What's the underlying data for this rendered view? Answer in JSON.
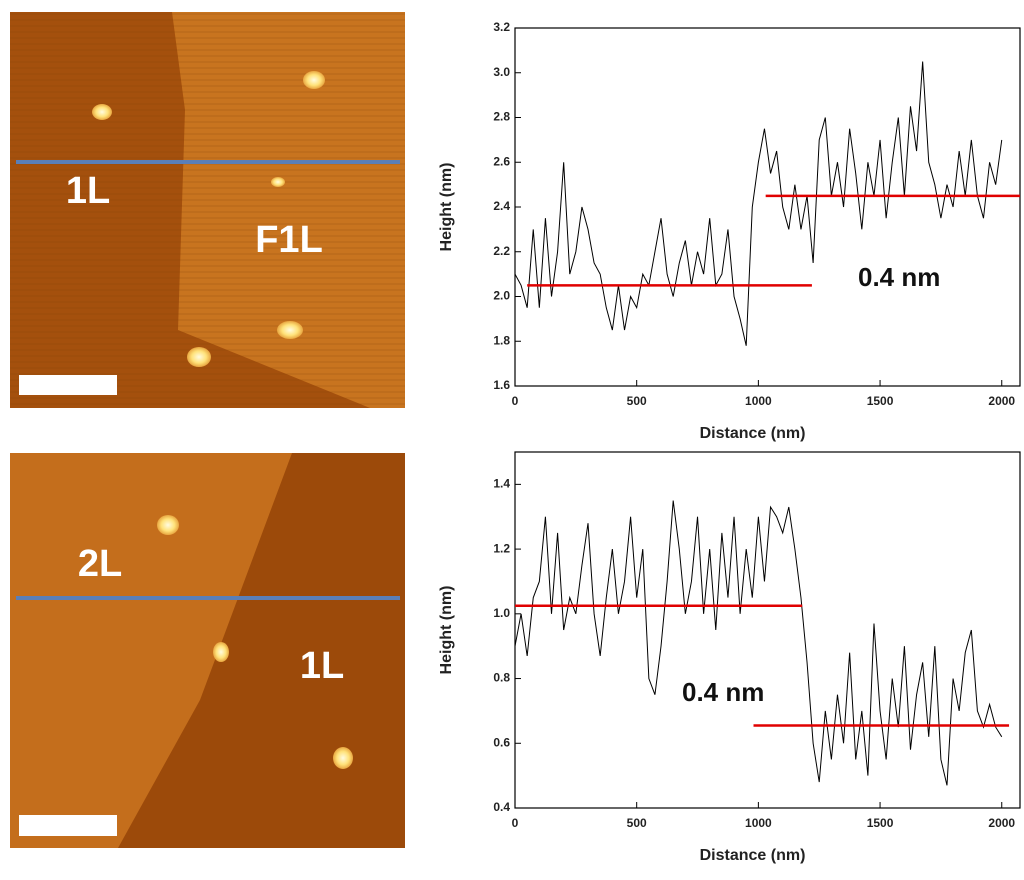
{
  "images": [
    {
      "labels": [
        "1L",
        "F1L"
      ]
    },
    {
      "labels": [
        "2L",
        "1L"
      ]
    }
  ],
  "chart_data": [
    {
      "type": "line",
      "xlabel": "Distance (nm)",
      "ylabel": "Height (nm)",
      "annotation": "0.4 nm",
      "xlim": [
        0,
        2075
      ],
      "ylim": [
        1.6,
        3.2
      ],
      "xticks": [
        0,
        500,
        1000,
        1500,
        2000
      ],
      "yticks": [
        1.6,
        1.8,
        {
          "value": 2,
          "label": "2.0"
        },
        2.2,
        2.4,
        2.6,
        2.8,
        {
          "value": 3,
          "label": "3.0"
        },
        3.2
      ],
      "x": [
        0,
        25,
        50,
        75,
        100,
        125,
        150,
        175,
        200,
        225,
        250,
        275,
        300,
        325,
        350,
        375,
        400,
        425,
        450,
        475,
        500,
        525,
        550,
        575,
        600,
        625,
        650,
        675,
        700,
        725,
        750,
        775,
        800,
        825,
        850,
        875,
        900,
        925,
        950,
        975,
        1000,
        1025,
        1050,
        1075,
        1100,
        1125,
        1150,
        1175,
        1200,
        1225,
        1250,
        1275,
        1300,
        1325,
        1350,
        1375,
        1400,
        1425,
        1450,
        1475,
        1500,
        1525,
        1550,
        1575,
        1600,
        1625,
        1650,
        1675,
        1700,
        1725,
        1750,
        1775,
        1800,
        1825,
        1850,
        1875,
        1900,
        1925,
        1950,
        1975,
        2000
      ],
      "series": [
        {
          "color": "#000000",
          "values": [
            2.1,
            2.05,
            1.95,
            2.3,
            1.95,
            2.35,
            2.0,
            2.2,
            2.6,
            2.1,
            2.2,
            2.4,
            2.3,
            2.15,
            2.1,
            1.95,
            1.85,
            2.05,
            1.85,
            2.0,
            1.95,
            2.1,
            2.05,
            2.2,
            2.35,
            2.1,
            2.0,
            2.15,
            2.25,
            2.05,
            2.2,
            2.1,
            2.35,
            2.05,
            2.1,
            2.3,
            2.0,
            1.9,
            1.78,
            2.4,
            2.6,
            2.75,
            2.55,
            2.65,
            2.4,
            2.3,
            2.5,
            2.3,
            2.45,
            2.15,
            2.7,
            2.8,
            2.45,
            2.6,
            2.4,
            2.75,
            2.55,
            2.3,
            2.6,
            2.45,
            2.7,
            2.35,
            2.6,
            2.8,
            2.45,
            2.85,
            2.65,
            3.05,
            2.6,
            2.5,
            2.35,
            2.5,
            2.4,
            2.65,
            2.45,
            2.7,
            2.45,
            2.35,
            2.6,
            2.5,
            2.7
          ]
        }
      ],
      "levels": [
        {
          "color": "#e00000",
          "x": [
            50,
            1220
          ],
          "y": 2.05
        },
        {
          "color": "#e00000",
          "x": [
            1030,
            2075
          ],
          "y": 2.45
        }
      ]
    },
    {
      "type": "line",
      "xlabel": "Distance (nm)",
      "ylabel": "Height (nm)",
      "annotation": "0.4 nm",
      "xlim": [
        0,
        2075
      ],
      "ylim": [
        0.4,
        1.5
      ],
      "xticks": [
        0,
        500,
        1000,
        1500,
        2000
      ],
      "yticks": [
        0.4,
        0.6,
        0.8,
        {
          "value": 1,
          "label": "1.0"
        },
        1.2,
        1.4
      ],
      "x": [
        0,
        25,
        50,
        75,
        100,
        125,
        150,
        175,
        200,
        225,
        250,
        275,
        300,
        325,
        350,
        375,
        400,
        425,
        450,
        475,
        500,
        525,
        550,
        575,
        600,
        625,
        650,
        675,
        700,
        725,
        750,
        775,
        800,
        825,
        850,
        875,
        900,
        925,
        950,
        975,
        1000,
        1025,
        1050,
        1075,
        1100,
        1125,
        1150,
        1175,
        1200,
        1225,
        1250,
        1275,
        1300,
        1325,
        1350,
        1375,
        1400,
        1425,
        1450,
        1475,
        1500,
        1525,
        1550,
        1575,
        1600,
        1625,
        1650,
        1675,
        1700,
        1725,
        1750,
        1775,
        1800,
        1825,
        1850,
        1875,
        1900,
        1925,
        1950,
        1975,
        2000
      ],
      "series": [
        {
          "color": "#000000",
          "values": [
            0.9,
            1.0,
            0.87,
            1.05,
            1.1,
            1.3,
            1.0,
            1.25,
            0.95,
            1.05,
            1.0,
            1.15,
            1.28,
            1.0,
            0.87,
            1.05,
            1.2,
            1.0,
            1.1,
            1.3,
            1.05,
            1.2,
            0.8,
            0.75,
            0.9,
            1.1,
            1.35,
            1.2,
            1.0,
            1.1,
            1.3,
            1.0,
            1.2,
            0.95,
            1.25,
            1.05,
            1.3,
            1.0,
            1.2,
            1.05,
            1.3,
            1.1,
            1.33,
            1.3,
            1.25,
            1.33,
            1.2,
            1.05,
            0.85,
            0.6,
            0.48,
            0.7,
            0.55,
            0.75,
            0.6,
            0.88,
            0.55,
            0.7,
            0.5,
            0.97,
            0.7,
            0.55,
            0.8,
            0.65,
            0.9,
            0.58,
            0.75,
            0.85,
            0.62,
            0.9,
            0.55,
            0.47,
            0.8,
            0.7,
            0.88,
            0.95,
            0.7,
            0.65,
            0.72,
            0.65,
            0.62
          ]
        }
      ],
      "levels": [
        {
          "color": "#e00000",
          "x": [
            0,
            1180
          ],
          "y": 1.025
        },
        {
          "color": "#e00000",
          "x": [
            980,
            2030
          ],
          "y": 0.655
        }
      ]
    }
  ]
}
